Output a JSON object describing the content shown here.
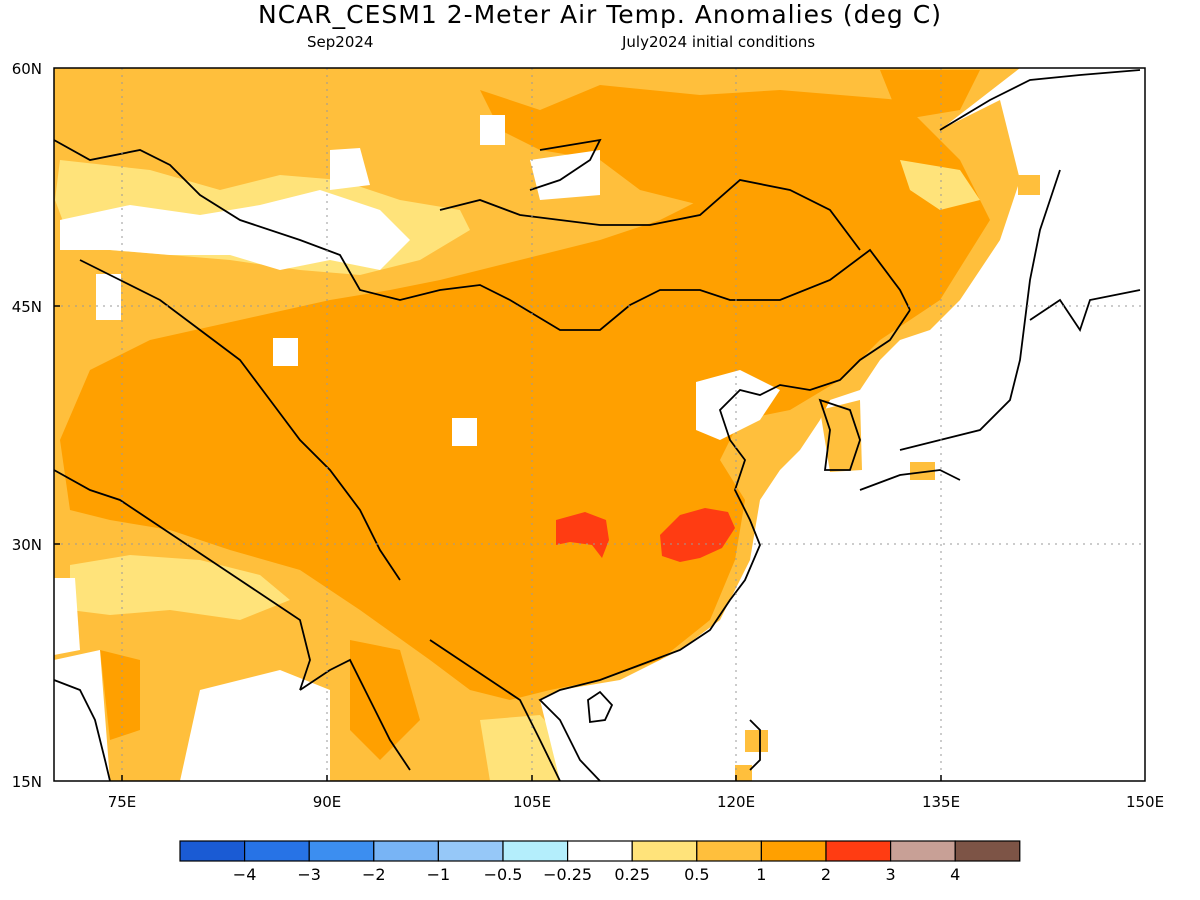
{
  "title": "NCAR_CESM1 2-Meter Air Temp. Anomalies (deg C)",
  "subtitle_left": "Sep2024",
  "subtitle_right": "July2024 initial conditions",
  "colors": {
    "land_outline": "#000000",
    "grid": "#9a9a9a"
  },
  "map": {
    "lon_range": [
      70,
      150
    ],
    "lat_range": [
      15,
      60
    ],
    "lon_ticks": [
      "75E",
      "90E",
      "105E",
      "120E",
      "135E",
      "150E"
    ],
    "lat_ticks": [
      "60N",
      "45N",
      "30N",
      "15N"
    ],
    "grid": "dotted"
  },
  "colorbar": {
    "swatches": [
      "#1a5bd4",
      "#2773e6",
      "#3c8ef0",
      "#78b4f5",
      "#96c8f8",
      "#b4eefc",
      "#ffffff",
      "#ffe37a",
      "#ffbf3c",
      "#ffa000",
      "#ff3c12",
      "#c8a096",
      "#7d5446"
    ],
    "labels": [
      "−4",
      "−3",
      "−2",
      "−1",
      "−0.5",
      "−0.25",
      "0.25",
      "0.5",
      "1",
      "2",
      "3",
      "4"
    ]
  }
}
